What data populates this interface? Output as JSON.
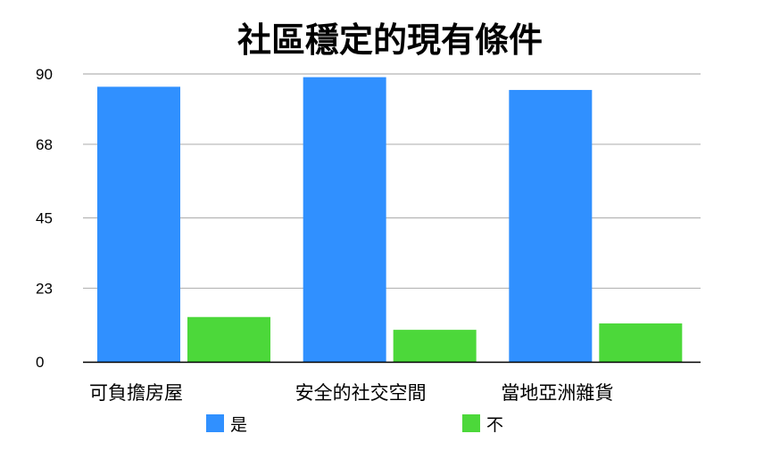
{
  "chart_data": {
    "type": "bar",
    "title": "社區穩定的現有條件",
    "categories": [
      "可負擔房屋",
      "安全的社交空間",
      "當地亞洲雜貨"
    ],
    "series": [
      {
        "name": "是",
        "color": "#3090ff",
        "values": [
          86,
          89,
          85
        ]
      },
      {
        "name": "不",
        "color": "#4cd83a",
        "values": [
          14,
          10,
          12
        ]
      }
    ],
    "yticks": [
      0,
      23,
      45,
      68,
      90
    ],
    "ylim": [
      0,
      90
    ],
    "grid": true,
    "legend_position": "bottom",
    "xlabel": "",
    "ylabel": ""
  }
}
